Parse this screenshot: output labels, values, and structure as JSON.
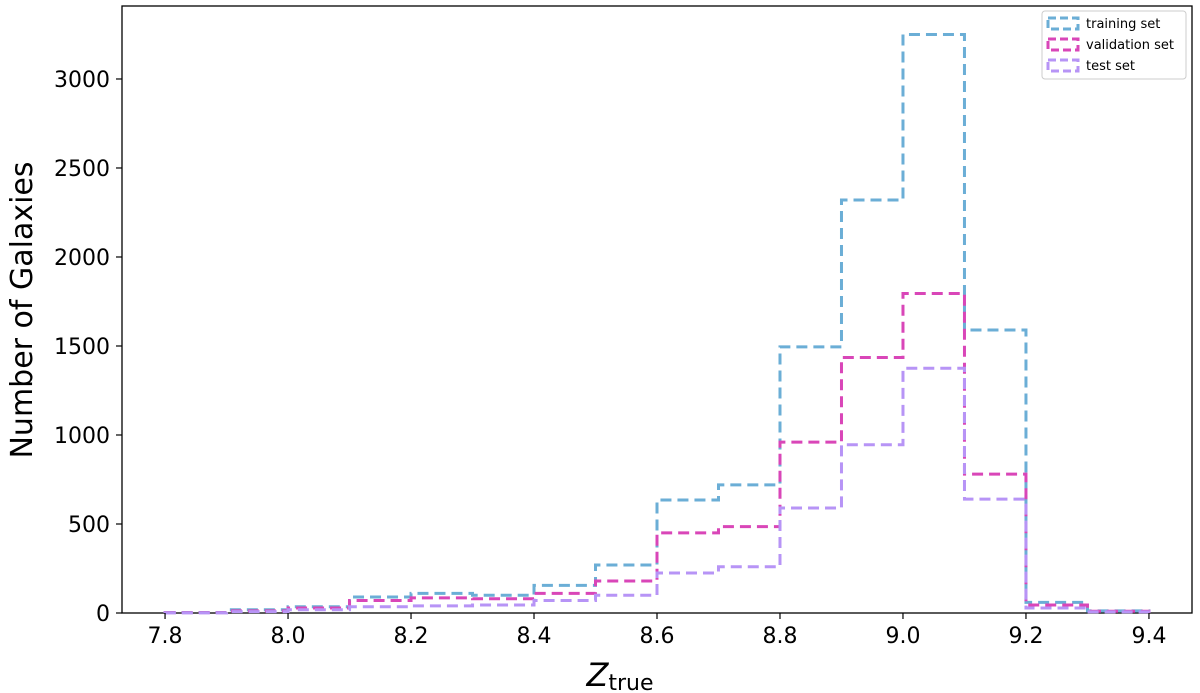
{
  "chart_data": {
    "type": "histogram",
    "ylabel": "Number of Galaxies",
    "xlabel_main": "Z",
    "xlabel_sub": "true",
    "xlim": [
      7.73,
      9.47
    ],
    "ylim": [
      0,
      3410
    ],
    "xticks": [
      "7.8",
      "8.0",
      "8.2",
      "8.4",
      "8.6",
      "8.8",
      "9.0",
      "9.2",
      "9.4"
    ],
    "yticks": [
      "0",
      "500",
      "1000",
      "1500",
      "2000",
      "2500",
      "3000"
    ],
    "bin_edges": [
      7.8,
      7.9,
      8.0,
      8.1,
      8.2,
      8.3,
      8.4,
      8.5,
      8.6,
      8.7,
      8.8,
      8.9,
      9.0,
      9.1,
      9.2,
      9.3,
      9.4
    ],
    "legend_position": "top-right",
    "series": [
      {
        "name": "training set",
        "color": "#6baed6",
        "values": [
          3,
          18,
          35,
          90,
          110,
          100,
          155,
          270,
          635,
          720,
          1495,
          2320,
          3250,
          1590,
          60,
          12
        ]
      },
      {
        "name": "validation set",
        "color": "#d946b8",
        "values": [
          2,
          12,
          28,
          70,
          85,
          80,
          110,
          180,
          450,
          485,
          960,
          1435,
          1795,
          780,
          45,
          10
        ]
      },
      {
        "name": "test set",
        "color": "#b794f6",
        "values": [
          1,
          8,
          18,
          35,
          40,
          45,
          70,
          100,
          225,
          260,
          590,
          945,
          1375,
          640,
          28,
          6
        ]
      }
    ]
  }
}
